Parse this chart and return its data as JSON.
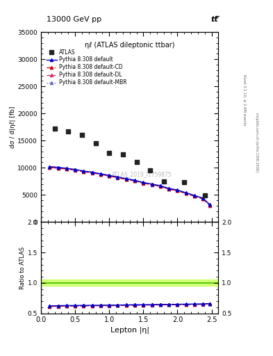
{
  "title_top": "13000 GeV pp",
  "title_top_right": "tt̅",
  "plot_title": "ηℓ (ATLAS dileptonic ttbar)",
  "watermark": "ATLAS_2019_I1759875",
  "right_label_top": "Rivet 3.1.10, ≥ 2.8M events",
  "right_label_bottom": "mcplots.cern.ch [arXiv:1306.3436]",
  "ylabel_main": "dσ / d|ηℓ| [fb]",
  "ylabel_ratio": "Ratio to ATLAS",
  "xlabel": "Lepton |η|",
  "pythia_x": [
    0.125,
    0.25,
    0.375,
    0.5,
    0.625,
    0.75,
    0.875,
    1.0,
    1.125,
    1.25,
    1.375,
    1.5,
    1.625,
    1.75,
    1.875,
    2.0,
    2.125,
    2.25,
    2.375,
    2.475
  ],
  "pythia_default_y": [
    10200,
    10100,
    9900,
    9700,
    9400,
    9200,
    8900,
    8600,
    8300,
    8000,
    7700,
    7300,
    7000,
    6700,
    6200,
    5900,
    5400,
    4900,
    4400,
    3200
  ],
  "pythia_cd_y": [
    10100,
    9950,
    9800,
    9600,
    9300,
    9100,
    8800,
    8500,
    8200,
    7900,
    7600,
    7200,
    6900,
    6600,
    6100,
    5800,
    5300,
    4800,
    4300,
    3100
  ],
  "pythia_dl_y": [
    10000,
    9900,
    9750,
    9550,
    9250,
    9050,
    8750,
    8450,
    8150,
    7850,
    7550,
    7150,
    6850,
    6550,
    6050,
    5750,
    5250,
    4750,
    4250,
    3050
  ],
  "pythia_mbr_y": [
    10150,
    10050,
    9850,
    9650,
    9350,
    9150,
    8850,
    8550,
    8250,
    7950,
    7650,
    7250,
    6950,
    6650,
    6150,
    5850,
    5350,
    4850,
    4350,
    3150
  ],
  "ratio_default_y": [
    0.62,
    0.625,
    0.628,
    0.628,
    0.63,
    0.63,
    0.632,
    0.633,
    0.635,
    0.638,
    0.64,
    0.64,
    0.642,
    0.645,
    0.645,
    0.648,
    0.65,
    0.652,
    0.654,
    0.66
  ],
  "ratio_cd_y": [
    0.615,
    0.618,
    0.622,
    0.623,
    0.625,
    0.626,
    0.628,
    0.629,
    0.631,
    0.634,
    0.636,
    0.637,
    0.638,
    0.641,
    0.642,
    0.644,
    0.646,
    0.648,
    0.65,
    0.656
  ],
  "ratio_dl_y": [
    0.612,
    0.614,
    0.618,
    0.619,
    0.621,
    0.622,
    0.624,
    0.625,
    0.627,
    0.63,
    0.632,
    0.633,
    0.635,
    0.638,
    0.638,
    0.641,
    0.643,
    0.645,
    0.647,
    0.653
  ],
  "ratio_mbr_y": [
    0.618,
    0.621,
    0.624,
    0.625,
    0.627,
    0.628,
    0.63,
    0.631,
    0.633,
    0.636,
    0.638,
    0.639,
    0.641,
    0.644,
    0.644,
    0.647,
    0.649,
    0.651,
    0.653,
    0.659
  ],
  "atlas_data_x": [
    0.2,
    0.4,
    0.6,
    0.8,
    1.0,
    1.2,
    1.4,
    1.6,
    1.8,
    2.1,
    2.4
  ],
  "atlas_data_y": [
    17200,
    16700,
    16000,
    14500,
    12700,
    12500,
    11000,
    9500,
    7500,
    7300,
    4900
  ],
  "color_default": "#0000cc",
  "color_cd": "#cc0000",
  "color_dl": "#cc3366",
  "color_mbr": "#6666cc",
  "color_atlas": "#222222",
  "green_band_color": "#ccff66",
  "green_line_color": "#44bb00",
  "ylim_main": [
    0,
    35000
  ],
  "ylim_ratio": [
    0.5,
    2.0
  ],
  "xlim": [
    0.0,
    2.6
  ],
  "yticks_main": [
    0,
    5000,
    10000,
    15000,
    20000,
    25000,
    30000,
    35000
  ],
  "yticks_ratio": [
    0.5,
    1.0,
    1.5,
    2.0
  ],
  "xticks": [
    0.0,
    0.5,
    1.0,
    1.5,
    2.0,
    2.5
  ]
}
